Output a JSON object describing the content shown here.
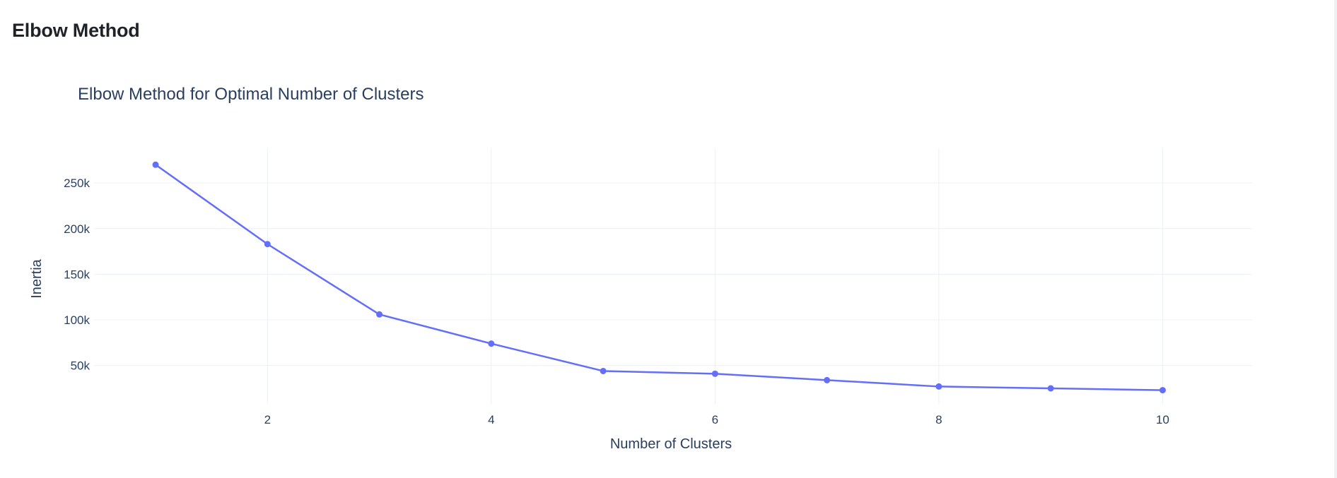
{
  "page": {
    "title": "Elbow Method"
  },
  "chart_data": {
    "type": "line",
    "title": "Elbow Method for Optimal Number of Clusters",
    "xlabel": "Number of Clusters",
    "ylabel": "Inertia",
    "x": [
      1,
      2,
      3,
      4,
      5,
      6,
      7,
      8,
      9,
      10
    ],
    "series": [
      {
        "values": [
          270000,
          183000,
          106000,
          74000,
          44000,
          41000,
          34000,
          27000,
          25000,
          23000
        ]
      }
    ],
    "xlim": [
      0.45,
      10.8
    ],
    "ylim": [
      8000,
      288000
    ],
    "xticks": [
      2,
      4,
      6,
      8,
      10
    ],
    "xtick_labels": [
      "2",
      "4",
      "6",
      "8",
      "10"
    ],
    "yticks": [
      50000,
      100000,
      150000,
      200000,
      250000
    ],
    "ytick_labels": [
      "50k",
      "100k",
      "150k",
      "200k",
      "250k"
    ],
    "grid": true,
    "colors": {
      "line": "#636efa",
      "grid": "#ebf0f8",
      "text": "#2a3f5f"
    }
  }
}
